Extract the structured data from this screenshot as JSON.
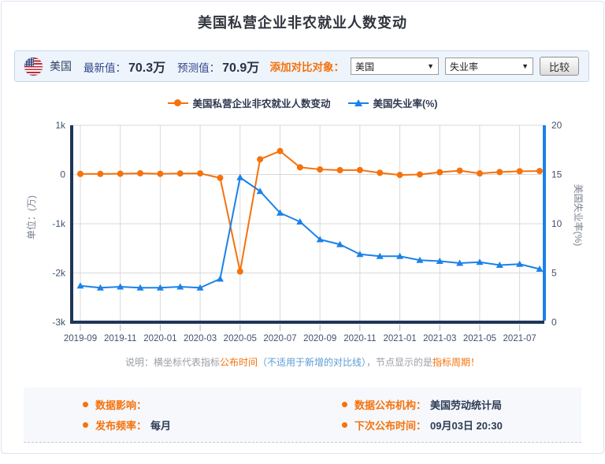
{
  "page": {
    "title": "美国私营企业非农就业人数变动"
  },
  "header": {
    "flag_icon": "us-flag",
    "country": "美国",
    "latest_label": "最新值：",
    "latest_value": "70.3万",
    "forecast_label": "预测值：",
    "forecast_value": "70.9万",
    "compare_label": "添加对比对象：",
    "country_select": "美国",
    "indicator_select": "失业率",
    "dropdown_icon": "▼",
    "compare_button": "比较"
  },
  "chart_data": {
    "type": "line",
    "title": "美国私营企业非农就业人数变动",
    "x_axis_meaning": "指标公布时间",
    "categories": [
      "2019-09",
      "2019-10",
      "2019-11",
      "2019-12",
      "2020-01",
      "2020-02",
      "2020-03",
      "2020-04",
      "2020-05",
      "2020-06",
      "2020-07",
      "2020-08",
      "2020-09",
      "2020-10",
      "2020-11",
      "2020-12",
      "2021-01",
      "2021-02",
      "2021-03",
      "2021-04",
      "2021-05",
      "2021-06",
      "2021-07",
      "2021-08"
    ],
    "x_tick_labels": [
      "2019-09",
      "2019-11",
      "2020-01",
      "2020-03",
      "2020-05",
      "2020-07",
      "2020-09",
      "2020-11",
      "2021-01",
      "2021-03",
      "2021-05",
      "2021-07"
    ],
    "series": [
      {
        "name": "美国私营企业非农就业人数变动",
        "axis": "left",
        "marker": "circle",
        "color": "#f5720d",
        "values": [
          12,
          12,
          16,
          24,
          14,
          21,
          23,
          -70,
          -1970,
          309,
          477,
          146,
          103,
          88,
          91,
          34,
          -9.5,
          0.6,
          46.5,
          78,
          21.8,
          49.2,
          66.2,
          70.3
        ]
      },
      {
        "name": "美国失业率(%)",
        "axis": "right",
        "marker": "triangle",
        "color": "#1b82e8",
        "values": [
          3.7,
          3.5,
          3.6,
          3.5,
          3.5,
          3.6,
          3.5,
          4.4,
          14.7,
          13.3,
          11.1,
          10.2,
          8.4,
          7.9,
          6.9,
          6.7,
          6.7,
          6.3,
          6.2,
          6.0,
          6.1,
          5.8,
          5.9,
          5.4
        ]
      }
    ],
    "left_axis": {
      "label": "单位：(万)",
      "ticks": [
        "1k",
        "0",
        "-1k",
        "-2k",
        "-3k"
      ],
      "min": -3000,
      "max": 1000
    },
    "right_axis": {
      "label": "美国失业率(%)",
      "ticks": [
        "20",
        "15",
        "10",
        "5",
        "0"
      ],
      "min": 0,
      "max": 20
    },
    "grid": true,
    "legend_position": "top"
  },
  "note": {
    "part1": "说明：横坐标代表指标",
    "part2": "公布时间",
    "part3": "（不适用于新增的对比线）",
    "part4": "，节点显示的是",
    "part5": "指标周期！"
  },
  "info": {
    "items": [
      {
        "label": "数据影响：",
        "value": ""
      },
      {
        "label": "数据公布机构：",
        "value": "美国劳动统计局"
      },
      {
        "label": "发布频率：",
        "value": "每月"
      },
      {
        "label": "下次公布时间：",
        "value": "09月03日 20:30"
      }
    ]
  },
  "colors": {
    "accent_orange": "#f5720d",
    "series_blue": "#1b82e8",
    "axis_navy": "#1e3558",
    "note_blue": "#5b9bd5",
    "header_bg": "#eef4fb",
    "header_border": "#c6d6ee",
    "card_border": "#dbe2f0",
    "info_bg": "#f6f8fb"
  }
}
